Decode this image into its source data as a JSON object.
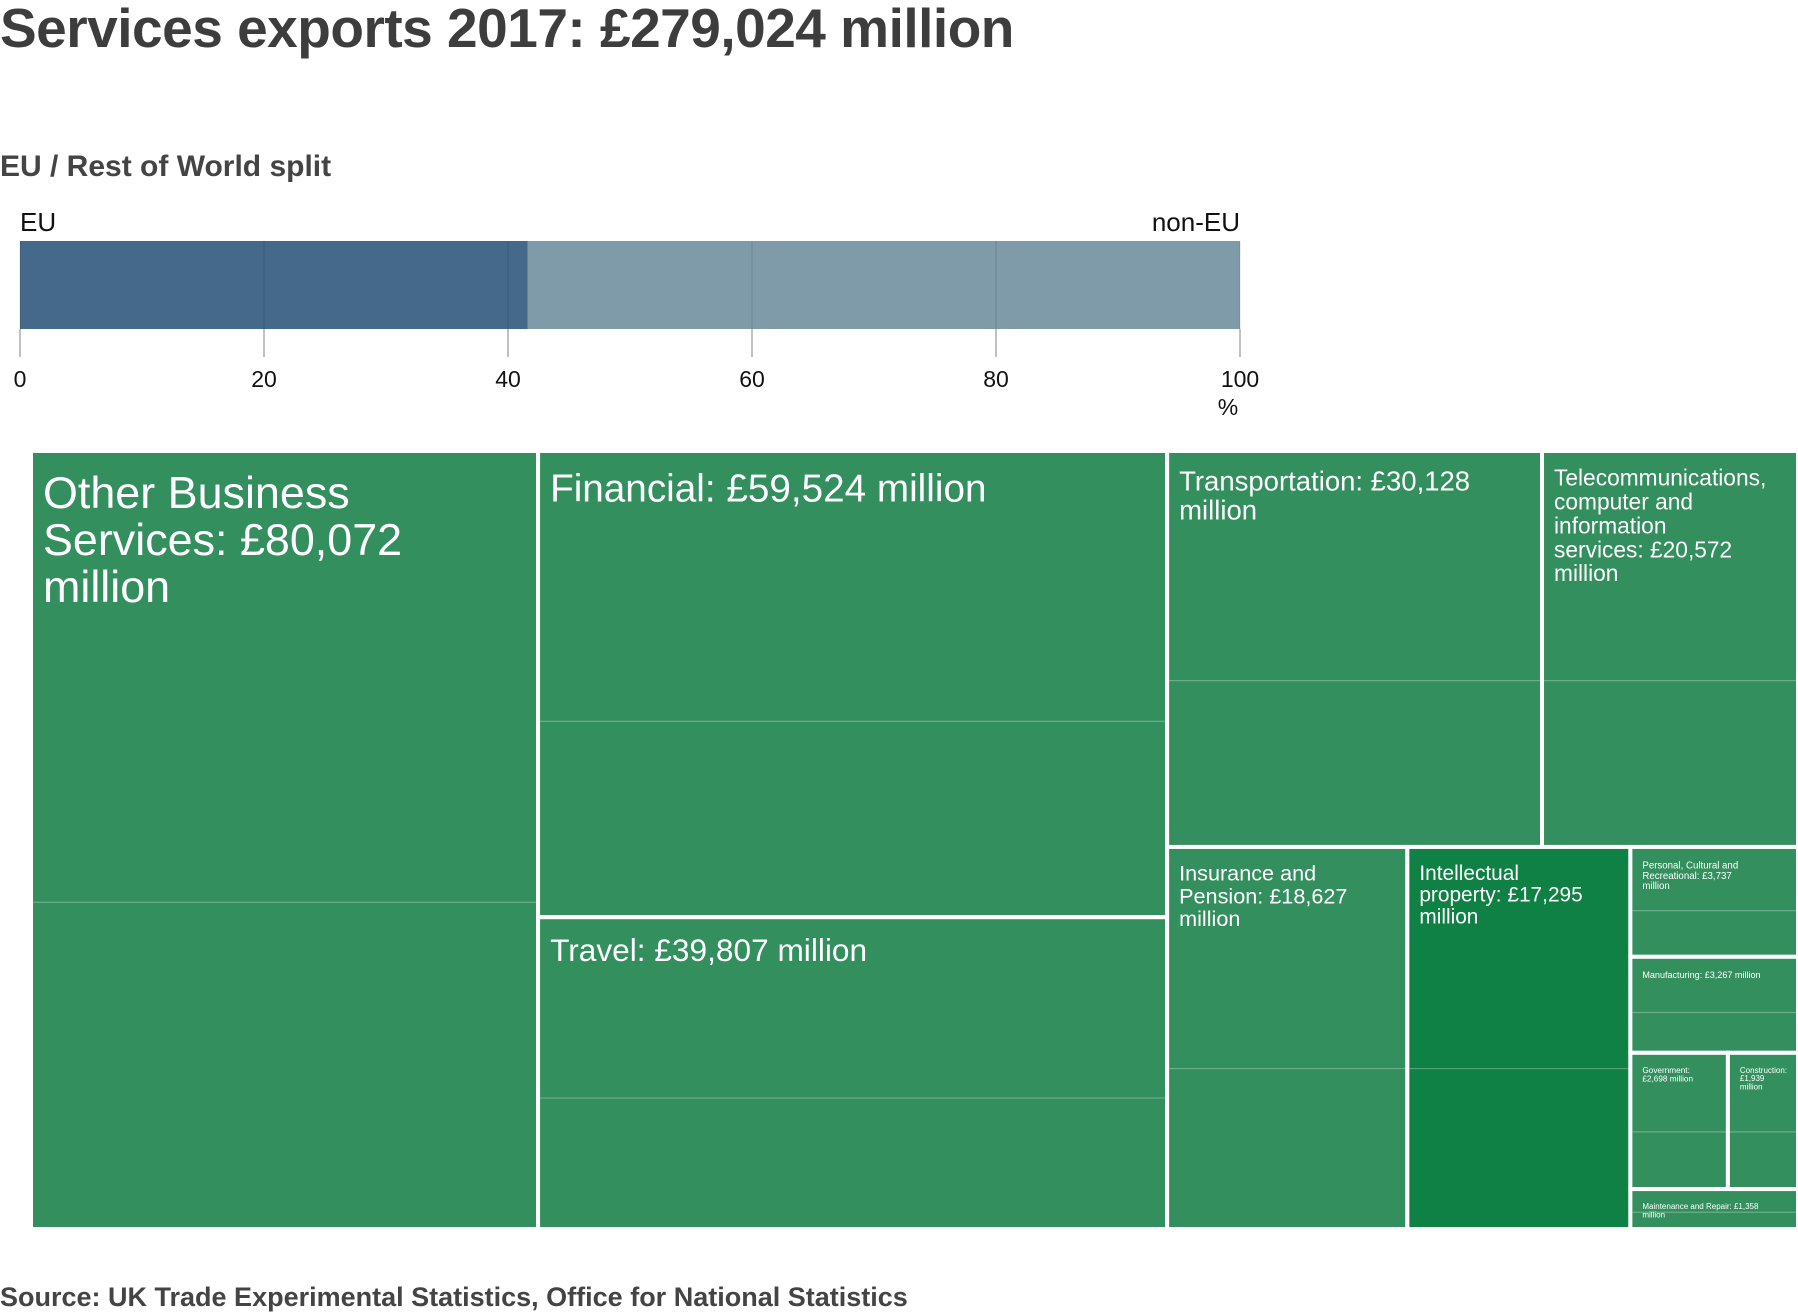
{
  "chart_data": [
    {
      "type": "bar",
      "title": "Services exports 2017: £279,024 million",
      "subtitle": "EU / Rest of World split",
      "orientation": "horizontal-stacked",
      "series": [
        {
          "name": "EU",
          "value": 41.6,
          "color": "#44698a"
        },
        {
          "name": "non-EU",
          "value": 58.4,
          "color": "#7f9aa8"
        }
      ],
      "xlim": [
        0,
        100
      ],
      "ticks": [
        "0",
        "20",
        "40",
        "60",
        "80",
        "100"
      ],
      "xlabel": "%",
      "grid": true
    },
    {
      "type": "treemap",
      "unit": "£ million",
      "color": "#338f5e",
      "highlight_color": "#108144",
      "items": [
        {
          "label": "Other Business Services: £80,072 million",
          "value": 80072
        },
        {
          "label": "Financial: £59,524 million",
          "value": 59524
        },
        {
          "label": "Travel: £39,807 million",
          "value": 39807
        },
        {
          "label": "Transportation: £30,128 million",
          "value": 30128
        },
        {
          "label": "Telecommunications, computer and information services: £20,572 million",
          "value": 20572
        },
        {
          "label": "Insurance and Pension: £18,627 million",
          "value": 18627
        },
        {
          "label": "Intellectual property: £17,295 million",
          "value": 17295
        },
        {
          "label": "Personal, Cultural and Recreational: £3,737 million",
          "value": 3737
        },
        {
          "label": "Manufacturing: £3,267 million",
          "value": 3267
        },
        {
          "label": "Government: £2,698 million",
          "value": 2698
        },
        {
          "label": "Construction: £1,939 million",
          "value": 1939
        },
        {
          "label": "Maintenance and Repair: £1,358 million",
          "value": 1358
        }
      ]
    }
  ],
  "source": "Source: UK Trade Experimental Statistics, Office for National Statistics"
}
